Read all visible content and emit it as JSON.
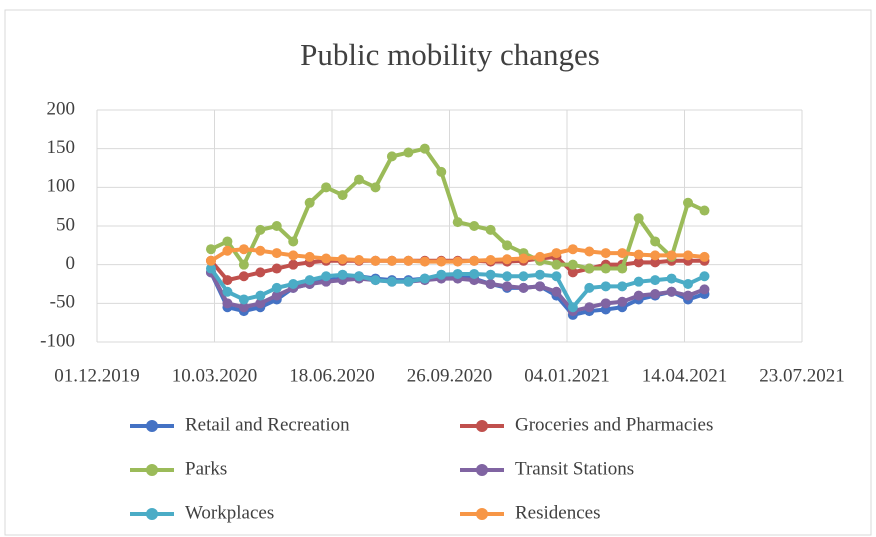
{
  "chart_data": {
    "type": "line",
    "title": "Public mobility changes",
    "x": [
      "2020-03-07",
      "2020-03-21",
      "2020-04-04",
      "2020-04-18",
      "2020-05-02",
      "2020-05-16",
      "2020-05-30",
      "2020-06-13",
      "2020-06-27",
      "2020-07-11",
      "2020-07-25",
      "2020-08-08",
      "2020-08-22",
      "2020-09-05",
      "2020-09-19",
      "2020-10-03",
      "2020-10-17",
      "2020-10-31",
      "2020-11-14",
      "2020-11-28",
      "2020-12-12",
      "2020-12-26",
      "2021-01-09",
      "2021-01-23",
      "2021-02-06",
      "2021-02-20",
      "2021-03-06",
      "2021-03-20",
      "2021-04-03",
      "2021-04-17",
      "2021-05-01"
    ],
    "series": [
      {
        "name": "Retail and Recreation",
        "color": "#4472c4",
        "values": [
          -10,
          -55,
          -60,
          -55,
          -45,
          -30,
          -25,
          -20,
          -18,
          -15,
          -18,
          -20,
          -20,
          -18,
          -15,
          -15,
          -18,
          -25,
          -30,
          -30,
          -28,
          -40,
          -65,
          -60,
          -58,
          -55,
          -45,
          -40,
          -35,
          -45,
          -38
        ]
      },
      {
        "name": "Groceries and Pharmacies",
        "color": "#c0504d",
        "values": [
          5,
          -20,
          -15,
          -10,
          -5,
          0,
          3,
          5,
          5,
          5,
          5,
          5,
          5,
          5,
          5,
          5,
          5,
          4,
          4,
          5,
          8,
          10,
          -10,
          -5,
          0,
          0,
          3,
          3,
          5,
          5,
          5
        ]
      },
      {
        "name": "Parks",
        "color": "#9bbb59",
        "values": [
          20,
          30,
          0,
          45,
          50,
          30,
          80,
          100,
          90,
          110,
          100,
          140,
          145,
          150,
          120,
          55,
          50,
          45,
          25,
          15,
          5,
          0,
          0,
          -5,
          -5,
          -5,
          60,
          30,
          10,
          80,
          70
        ]
      },
      {
        "name": "Transit Stations",
        "color": "#8064a2",
        "values": [
          -10,
          -50,
          -55,
          -50,
          -40,
          -30,
          -25,
          -22,
          -20,
          -18,
          -20,
          -22,
          -22,
          -20,
          -18,
          -18,
          -20,
          -25,
          -28,
          -30,
          -28,
          -35,
          -60,
          -55,
          -50,
          -48,
          -40,
          -38,
          -35,
          -40,
          -32
        ]
      },
      {
        "name": "Workplaces",
        "color": "#4bacc6",
        "values": [
          -5,
          -35,
          -45,
          -40,
          -30,
          -25,
          -20,
          -15,
          -13,
          -15,
          -20,
          -22,
          -22,
          -18,
          -13,
          -12,
          -12,
          -13,
          -15,
          -15,
          -13,
          -15,
          -55,
          -30,
          -28,
          -28,
          -22,
          -20,
          -18,
          -25,
          -15
        ]
      },
      {
        "name": "Residences",
        "color": "#f79646",
        "values": [
          5,
          18,
          20,
          18,
          15,
          12,
          10,
          8,
          7,
          6,
          5,
          5,
          5,
          4,
          4,
          4,
          5,
          6,
          7,
          8,
          10,
          15,
          20,
          17,
          15,
          15,
          13,
          12,
          12,
          12,
          10
        ]
      }
    ],
    "xlim": [
      "2019-12-01",
      "2021-07-23"
    ],
    "xticks": [
      {
        "value": "2019-12-01",
        "label": "01.12.2019"
      },
      {
        "value": "2020-03-10",
        "label": "10.03.2020"
      },
      {
        "value": "2020-06-18",
        "label": "18.06.2020"
      },
      {
        "value": "2020-09-26",
        "label": "26.09.2020"
      },
      {
        "value": "2021-01-04",
        "label": "04.01.2021"
      },
      {
        "value": "2021-04-14",
        "label": "14.04.2021"
      },
      {
        "value": "2021-07-23",
        "label": "23.07.2021"
      }
    ],
    "ylim": [
      -100,
      200
    ],
    "yticks": [
      -100,
      -50,
      0,
      50,
      100,
      150,
      200
    ],
    "grid": true
  }
}
